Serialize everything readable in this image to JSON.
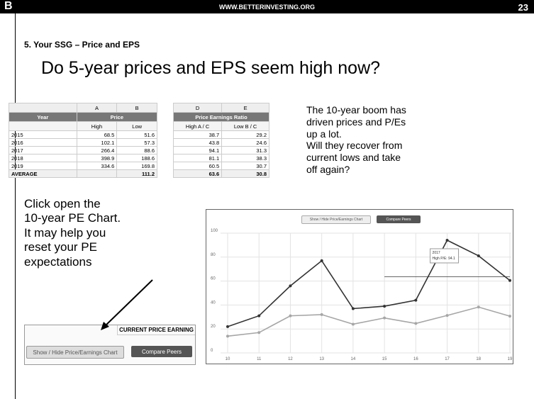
{
  "header": {
    "logo": "B",
    "url": "WWW.BETTERINVESTING.ORG",
    "page": "23"
  },
  "section": "5. Your SSG – Price and EPS",
  "headline": "Do 5-year prices and EPS seem high now?",
  "price_table": {
    "columns": [
      "A",
      "B"
    ],
    "year_label": "Year",
    "group": "Price",
    "subheaders": [
      "High",
      "Low"
    ],
    "rows": [
      [
        "2015",
        68.5,
        51.6
      ],
      [
        "2016",
        102.1,
        57.3
      ],
      [
        "2017",
        266.4,
        88.6
      ],
      [
        "2018",
        398.9,
        188.6
      ],
      [
        "2019",
        334.6,
        169.8
      ]
    ],
    "average": {
      "label": "AVERAGE",
      "low": 111.2
    }
  },
  "pe_table": {
    "columns": [
      "D",
      "E"
    ],
    "group": "Price Earnings Ratio",
    "subheaders": [
      "High A / C",
      "Low B / C"
    ],
    "rows": [
      [
        38.7,
        29.2
      ],
      [
        43.8,
        24.6
      ],
      [
        94.1,
        31.3
      ],
      [
        81.1,
        38.3
      ],
      [
        60.5,
        30.7
      ]
    ],
    "average": [
      63.6,
      30.8
    ]
  },
  "note_lines": [
    "The 10-year boom has",
    "driven prices and P/Es",
    "up a lot.",
    "Will they recover from",
    "current lows and take",
    "off again?"
  ],
  "instruction_lines": [
    "Click open the",
    "10-year PE Chart.",
    "It may help you",
    "reset your PE",
    "expectations"
  ],
  "panel": {
    "title": "CURRENT PRICE EARNING",
    "buttons": [
      "Show / Hide Price/Earnings Chart",
      "Compare Peers"
    ]
  },
  "chart": {
    "buttons": [
      "Show / Hide Price/Earnings Chart",
      "Compare Peers"
    ],
    "x": [
      10,
      11,
      12,
      13,
      14,
      15,
      16,
      17,
      18,
      19
    ],
    "xlim": [
      10,
      19
    ],
    "ylim": [
      0,
      100
    ],
    "yticks": [
      0,
      20,
      40,
      60,
      80,
      100
    ],
    "series": [
      {
        "color": "#333333",
        "values": [
          22,
          31,
          56,
          77,
          37,
          39,
          44,
          94.1,
          81.1,
          60.5
        ]
      },
      {
        "color": "#a6a6a6",
        "values": [
          14,
          17,
          31,
          32,
          24,
          29.2,
          24.6,
          31.3,
          38.3,
          30.7
        ]
      }
    ],
    "reference_lines": [
      {
        "value": 63.6,
        "x": [
          15,
          19
        ]
      }
    ],
    "tooltip": {
      "title": "2017",
      "text": "High P/E: 94.1",
      "x": 17,
      "y": 94.1
    }
  }
}
